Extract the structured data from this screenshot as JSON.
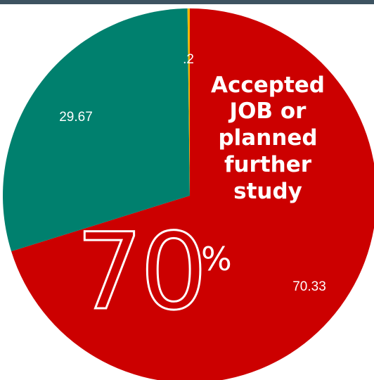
{
  "colors": {
    "top_bar": "#3d5361"
  },
  "callout": {
    "lines": [
      "Accepted",
      "JOB or",
      "planned",
      "further",
      "study"
    ],
    "big_number": "70",
    "big_percent": "%"
  },
  "chart_data": {
    "type": "pie",
    "title": "",
    "start_angle_deg": 0,
    "direction": "clockwise",
    "slices": [
      {
        "label": "",
        "value": 70.33,
        "display": "70.33",
        "color": "#cc0000"
      },
      {
        "label": "",
        "value": 29.67,
        "display": "29.67",
        "color": "#00806e"
      },
      {
        "label": "",
        "value": 0.2,
        "display": ".2",
        "color": "#f2b705"
      }
    ]
  }
}
